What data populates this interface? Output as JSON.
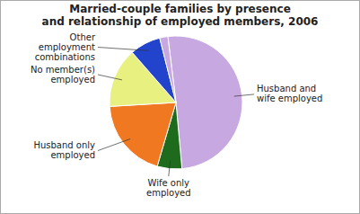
{
  "chart_data": {
    "type": "pie",
    "title": "Married-couple families by presence\nand relationship of employed members, 2006",
    "categories": [
      "Husband and\nwife employed",
      "Wife only\nemployed",
      "Husband only\nemployed",
      "No member(s)\nemployed",
      "Other\nemployment\ncombinations",
      null
    ],
    "values": [
      50.5,
      6.0,
      19.5,
      14.5,
      7.5,
      2.0
    ],
    "colors": [
      "#c8a8e0",
      "#1e6b1e",
      "#f07820",
      "#e8f080",
      "#2244cc",
      "#c8a8e0"
    ]
  }
}
